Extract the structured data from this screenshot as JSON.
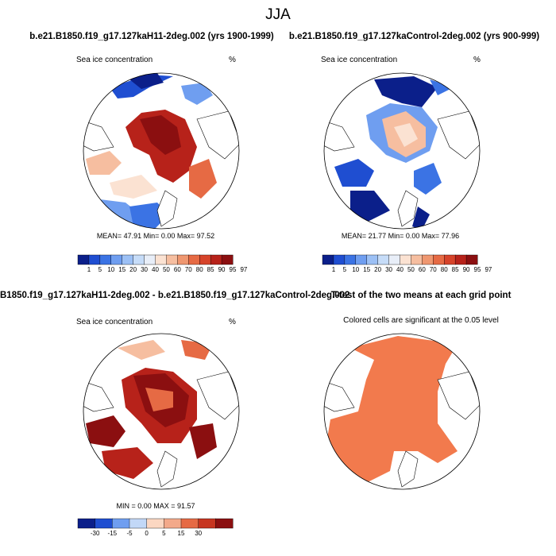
{
  "figure": {
    "title": "JJA"
  },
  "colors": {
    "conc": [
      "#0b1f8a",
      "#1f4ed1",
      "#3b73e4",
      "#6f9ef0",
      "#9cc0f5",
      "#c6dcf8",
      "#e8eef8",
      "#fbe2d2",
      "#f6bea0",
      "#ef9770",
      "#e66a44",
      "#d6432a",
      "#b7221a",
      "#8b0f10"
    ],
    "diff": [
      "#0b1f8a",
      "#1f4ed1",
      "#4f85ea",
      "#8fb4f3",
      "#c2d8f7",
      "#f4f4f4",
      "#fbd7c2",
      "#f3a98a",
      "#e66a44",
      "#c73520",
      "#8b0f10"
    ],
    "sig": "#f27a4d",
    "land": "#ffffff",
    "coast": "#000000"
  },
  "panels": [
    {
      "id": "hist",
      "title": "b.e21.B1850.f19_g17.127kaH11-2deg.002 (yrs 1900-1999)",
      "field_label": "Sea ice concentration",
      "units": "%",
      "stats": "MEAN=  47.91   Min=   0.00   Max=   97.52",
      "colorbar_labels": [
        "1",
        "5",
        "10",
        "15",
        "20",
        "30",
        "40",
        "50",
        "60",
        "70",
        "80",
        "85",
        "90",
        "95",
        "97"
      ]
    },
    {
      "id": "ctrl",
      "title": "b.e21.B1850.f19_g17.127kaControl-2deg.002 (yrs 900-999)",
      "field_label": "Sea ice concentration",
      "units": "%",
      "stats": "MEAN=  21.77   Min=   0.00   Max=   77.96",
      "colorbar_labels": [
        "1",
        "5",
        "10",
        "15",
        "20",
        "30",
        "40",
        "50",
        "60",
        "70",
        "80",
        "85",
        "90",
        "95",
        "97"
      ]
    },
    {
      "id": "diff",
      "title": "B1850.f19_g17.127kaH11-2deg.002 - b.e21.B1850.f19_g17.127kaControl-2deg.002",
      "field_label": "Sea ice concentration",
      "units": "%",
      "stats": "MIN =   0.00  MAX =   91.57",
      "colorbar_labels": [
        "-30",
        "-15",
        "-5",
        "0",
        "5",
        "15",
        "30"
      ]
    },
    {
      "id": "ttest",
      "title": "T-test of the two means at each grid point",
      "field_label": "Colored cells are significant at the 0.05 level"
    }
  ]
}
